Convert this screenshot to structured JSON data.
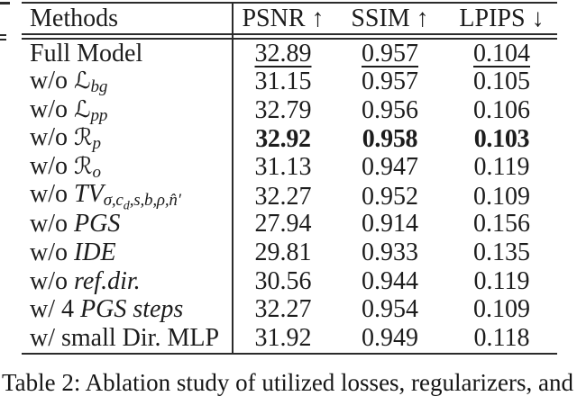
{
  "caption": "Table 2: Ablation study of utilized losses, regularizers, and",
  "table": {
    "headers": [
      "Methods",
      "PSNR ↑",
      "SSIM ↑",
      "LPIPS ↓"
    ],
    "rows": [
      {
        "label": [
          {
            "t": "Full Model",
            "s": "rm"
          }
        ],
        "psnr": "32.89",
        "ssim": "0.957",
        "lpips": "0.104",
        "emphasis": "underline"
      },
      {
        "label": [
          {
            "t": "w/o ",
            "s": "rm"
          },
          {
            "t": "ℒ",
            "s": "cal"
          },
          {
            "t": "bg",
            "s": "sub"
          }
        ],
        "psnr": "31.15",
        "ssim": "0.957",
        "lpips": "0.105",
        "emphasis": "none"
      },
      {
        "label": [
          {
            "t": "w/o ",
            "s": "rm"
          },
          {
            "t": "ℒ",
            "s": "cal"
          },
          {
            "t": "pp",
            "s": "sub"
          }
        ],
        "psnr": "32.79",
        "ssim": "0.956",
        "lpips": "0.106",
        "emphasis": "none"
      },
      {
        "label": [
          {
            "t": "w/o ",
            "s": "rm"
          },
          {
            "t": "ℛ",
            "s": "cal"
          },
          {
            "t": "p",
            "s": "sub"
          }
        ],
        "psnr": "32.92",
        "ssim": "0.958",
        "lpips": "0.103",
        "emphasis": "bold"
      },
      {
        "label": [
          {
            "t": "w/o ",
            "s": "rm"
          },
          {
            "t": "ℛ",
            "s": "cal"
          },
          {
            "t": "o",
            "s": "sub"
          }
        ],
        "psnr": "31.13",
        "ssim": "0.947",
        "lpips": "0.119",
        "emphasis": "none"
      },
      {
        "label": [
          {
            "t": "w/o ",
            "s": "rm"
          },
          {
            "t": "TV",
            "s": "it"
          },
          {
            "t": "σ,c",
            "s": "sub"
          },
          {
            "t": "d",
            "s": "subsub"
          },
          {
            "t": ",s,b,ρ,n̂′",
            "s": "sub"
          }
        ],
        "psnr": "32.27",
        "ssim": "0.952",
        "lpips": "0.109",
        "emphasis": "none"
      },
      {
        "label": [
          {
            "t": "w/o ",
            "s": "rm"
          },
          {
            "t": "PGS",
            "s": "it"
          }
        ],
        "psnr": "27.94",
        "ssim": "0.914",
        "lpips": "0.156",
        "emphasis": "none"
      },
      {
        "label": [
          {
            "t": "w/o ",
            "s": "rm"
          },
          {
            "t": "IDE",
            "s": "it"
          }
        ],
        "psnr": "29.81",
        "ssim": "0.933",
        "lpips": "0.135",
        "emphasis": "none"
      },
      {
        "label": [
          {
            "t": "w/o ",
            "s": "rm"
          },
          {
            "t": "ref.dir.",
            "s": "it"
          }
        ],
        "psnr": "30.56",
        "ssim": "0.944",
        "lpips": "0.119",
        "emphasis": "none"
      },
      {
        "label": [
          {
            "t": "w/ 4 ",
            "s": "rm"
          },
          {
            "t": "PGS steps",
            "s": "it"
          }
        ],
        "psnr": "32.27",
        "ssim": "0.954",
        "lpips": "0.109",
        "emphasis": "none"
      },
      {
        "label": [
          {
            "t": "w/ small Dir. MLP",
            "s": "rm"
          }
        ],
        "psnr": "31.92",
        "ssim": "0.949",
        "lpips": "0.118",
        "emphasis": "none"
      }
    ]
  },
  "colors": {
    "ink": "#1c1c1c",
    "rule": "#2b2b2b",
    "background": "#ffffff"
  }
}
